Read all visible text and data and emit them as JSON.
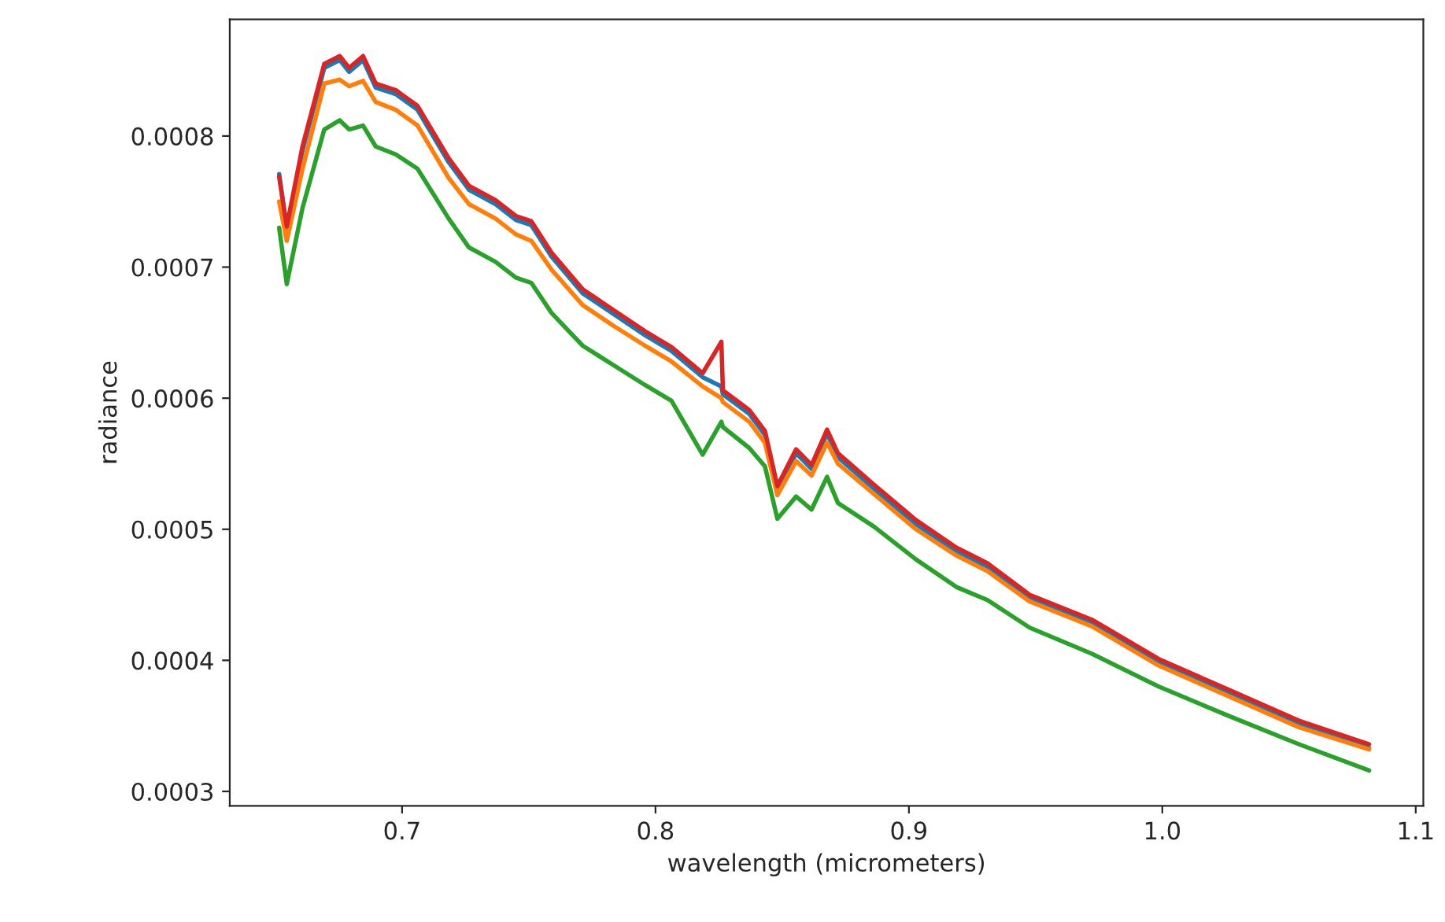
{
  "chart_data": {
    "type": "line",
    "xlabel": "wavelength (micrometers)",
    "ylabel": "radiance",
    "x": [
      0.6515,
      0.6545,
      0.6607,
      0.6693,
      0.6754,
      0.6791,
      0.6846,
      0.6896,
      0.6975,
      0.7061,
      0.7184,
      0.7264,
      0.7369,
      0.7449,
      0.751,
      0.759,
      0.7713,
      0.7836,
      0.7959,
      0.8063,
      0.8186,
      0.826,
      0.8266,
      0.837,
      0.8432,
      0.8481,
      0.8555,
      0.8616,
      0.8677,
      0.872,
      0.8862,
      0.9028,
      0.9187,
      0.931,
      0.9476,
      0.9722,
      0.9986,
      1.0257,
      1.0539,
      1.0816
    ],
    "series": [
      {
        "color": "#1f77b4",
        "values": [
          0.000771,
          0.000728,
          0.000789,
          0.000852,
          0.000858,
          0.000849,
          0.000858,
          0.000837,
          0.000832,
          0.00082,
          0.00078,
          0.000759,
          0.000748,
          0.000736,
          0.000732,
          0.000708,
          0.00068,
          0.000664,
          0.000648,
          0.000636,
          0.000616,
          0.000609,
          0.000603,
          0.000588,
          0.000572,
          0.00053,
          0.000558,
          0.000546,
          0.000573,
          0.000555,
          0.000531,
          0.000504,
          0.000483,
          0.000471,
          0.000447,
          0.000428,
          0.000398,
          0.000375,
          0.000351,
          0.000333
        ]
      },
      {
        "color": "#ff7f0e",
        "values": [
          0.00075,
          0.00072,
          0.000775,
          0.00084,
          0.000843,
          0.000838,
          0.000842,
          0.000826,
          0.00082,
          0.000808,
          0.000768,
          0.000748,
          0.000737,
          0.000725,
          0.00072,
          0.000698,
          0.000671,
          0.000655,
          0.00064,
          0.000628,
          0.000609,
          0.0006,
          0.000597,
          0.000582,
          0.000566,
          0.000526,
          0.000552,
          0.000541,
          0.000566,
          0.00055,
          0.000527,
          0.0005,
          0.00048,
          0.000468,
          0.000445,
          0.000426,
          0.000396,
          0.000373,
          0.000349,
          0.000332
        ]
      },
      {
        "color": "#2ca02c",
        "values": [
          0.00073,
          0.000687,
          0.000745,
          0.000805,
          0.000812,
          0.000805,
          0.000808,
          0.000792,
          0.000786,
          0.000775,
          0.000737,
          0.000715,
          0.000704,
          0.000692,
          0.000688,
          0.000665,
          0.00064,
          0.000625,
          0.00061,
          0.000598,
          0.000557,
          0.000582,
          0.000578,
          0.000562,
          0.000548,
          0.000508,
          0.000525,
          0.000515,
          0.00054,
          0.00052,
          0.000502,
          0.000477,
          0.000456,
          0.000446,
          0.000425,
          0.000405,
          0.00038,
          0.000358,
          0.000336,
          0.000316
        ]
      },
      {
        "color": "#d62728",
        "values": [
          0.000769,
          0.000731,
          0.000792,
          0.000855,
          0.000861,
          0.000852,
          0.000861,
          0.00084,
          0.000835,
          0.000823,
          0.000783,
          0.000762,
          0.000751,
          0.000739,
          0.000735,
          0.000711,
          0.000683,
          0.000667,
          0.000651,
          0.000639,
          0.000619,
          0.000643,
          0.000606,
          0.000591,
          0.000575,
          0.000533,
          0.000561,
          0.000549,
          0.000576,
          0.000558,
          0.000534,
          0.000507,
          0.000486,
          0.000474,
          0.00045,
          0.000431,
          0.000401,
          0.000378,
          0.000354,
          0.000336
        ]
      }
    ],
    "xlim": [
      0.632,
      1.103
    ],
    "ylim": [
      0.000289,
      0.000889
    ],
    "xticks": [
      0.7,
      0.8,
      0.9,
      {
        "value": 1.0,
        "label": "1.0"
      },
      1.1
    ],
    "yticks": [
      0.0003,
      0.0004,
      0.0005,
      0.0006,
      0.0007,
      0.0008
    ],
    "grid": false,
    "legend": false
  }
}
